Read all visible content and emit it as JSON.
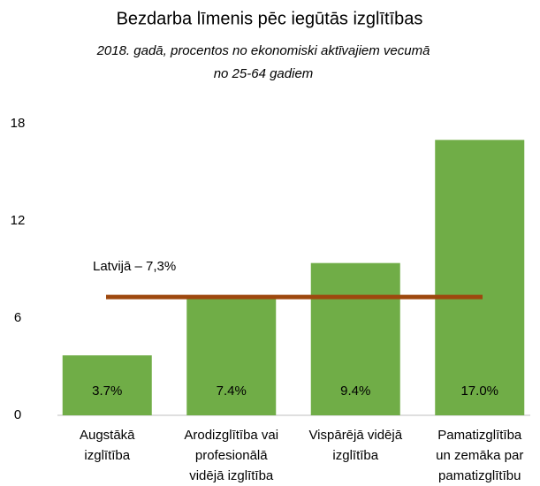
{
  "chart_data": {
    "type": "bar",
    "title": "Bezdarba līmenis pēc iegūtās izglītības",
    "subtitle": "2018. gadā, procentos no ekonomiski aktīvajiem vecumā\nno 25-64 gadiem",
    "categories": [
      "Augstākā\nizglītība",
      "Arodizglītība vai\nprofesionālā\nvidējā izglītība",
      "Vispārējā vidējā\nizglītība",
      "Pamatizglītība\nun zemāka par\npamatizglītību"
    ],
    "values": [
      3.7,
      7.4,
      9.4,
      17.0
    ],
    "value_labels": [
      "3.7%",
      "7.4%",
      "9.4%",
      "17.0%"
    ],
    "color": "#70ad47",
    "ylim": [
      0,
      18
    ],
    "yticks": [
      0,
      6,
      12,
      18
    ],
    "grid": false,
    "reference_line": {
      "value": 7.3,
      "label": "Latvijā – 7,3%",
      "color": "#9e480e"
    }
  }
}
